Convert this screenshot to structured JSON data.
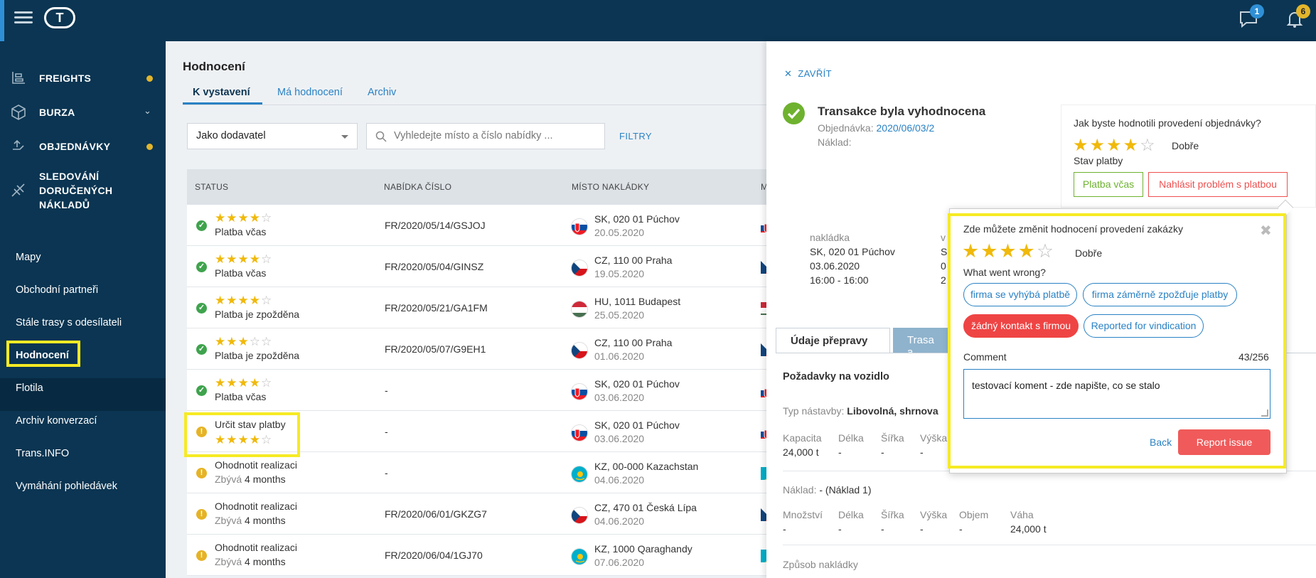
{
  "topbar": {
    "logo": "T",
    "chat_badge": "1",
    "bell_badge": "6"
  },
  "sidebar": {
    "main": [
      {
        "label": "FREIGHTS",
        "icon": "freights-icon",
        "dot": true
      },
      {
        "label": "BURZA",
        "icon": "exchange-icon",
        "chevron": true
      },
      {
        "label": "OBJEDNÁVKY",
        "icon": "orders-icon",
        "dot": true
      },
      {
        "label_lines": [
          "SLEDOVÁNÍ",
          "DORUČENÝCH",
          "NÁKLADŮ"
        ],
        "icon": "tracking-icon"
      }
    ],
    "links": [
      "Mapy",
      "Obchodní partneři",
      "Stále trasy s odesílateli",
      "Hodnocení",
      "Flotila",
      "Archiv konverzací",
      "Trans.INFO",
      "Vymáhání pohledávek"
    ]
  },
  "page": {
    "title": "Hodnocení",
    "tabs": [
      "K vystavení",
      "Má hodnocení",
      "Archiv"
    ],
    "filter_select": "Jako dodavatel",
    "search_placeholder": "Vyhledejte místo a číslo nabídky ...",
    "filters_label": "FILTRY"
  },
  "table": {
    "columns": [
      "STATUS",
      "NABÍDKA ČÍSLO",
      "MÍSTO NAKLÁDKY",
      "M"
    ],
    "rows": [
      {
        "status": "ok",
        "stars": 4,
        "text": "Platba včas",
        "offer": "FR/2020/05/14/GSJOJ",
        "flag": "sk",
        "place": "SK, 020 01 Púchov",
        "date": "20.05.2020"
      },
      {
        "status": "ok",
        "stars": 4,
        "text": "Platba včas",
        "offer": "FR/2020/05/04/GINSZ",
        "flag": "cz",
        "place": "CZ, 110 00 Praha",
        "date": "19.05.2020"
      },
      {
        "status": "ok",
        "stars": 4,
        "text": "Platba je zpožděna",
        "offer": "FR/2020/05/21/GA1FM",
        "flag": "hu",
        "place": "HU, 1011 Budapest",
        "date": "25.05.2020"
      },
      {
        "status": "ok",
        "stars": 3,
        "text": "Platba je zpožděna",
        "offer": "FR/2020/05/07/G9EH1",
        "flag": "cz",
        "place": "CZ, 110 00 Praha",
        "date": "01.06.2020"
      },
      {
        "status": "ok",
        "stars": 4,
        "text": "Platba včas",
        "offer": "-",
        "flag": "sk",
        "place": "SK, 020 01 Púchov",
        "date": "03.06.2020"
      },
      {
        "status": "warn",
        "stars": 4,
        "text": "Určit stav platby",
        "offer": "-",
        "flag": "sk",
        "place": "SK, 020 01 Púchov",
        "date": "03.06.2020"
      },
      {
        "status": "warn",
        "text": "Ohodnotit realizaci",
        "remain_label": "Zbývá",
        "remain": "4 months",
        "offer": "-",
        "flag": "kz",
        "place": "KZ, 00-000 Kazachstan",
        "date": "04.06.2020"
      },
      {
        "status": "warn",
        "text": "Ohodnotit realizaci",
        "remain_label": "Zbývá",
        "remain": "4 months",
        "offer": "FR/2020/06/01/GKZG7",
        "flag": "cz",
        "place": "CZ, 470 01 Česká Lípa",
        "date": "04.06.2020"
      },
      {
        "status": "warn",
        "text": "Ohodnotit realizaci",
        "remain_label": "Zbývá",
        "remain": "4 months",
        "offer": "FR/2020/06/04/1GJ70",
        "flag": "kz",
        "place": "KZ, 1000 Qaraghandy",
        "date": "07.06.2020"
      }
    ]
  },
  "panel": {
    "close": "ZAVŘÍT",
    "title": "Transakce byla vyhodnocena",
    "order_label": "Objednávka:",
    "order_value": "2020/06/03/2",
    "load_label": "Náklad:",
    "loading_label": "nakládka",
    "loading_place": "SK, 020 01 Púchov",
    "loading_date": "03.06.2020",
    "loading_time": "16:00 - 16:00",
    "unloading_frag": "v",
    "unloading_frag2": "S",
    "unloading_frag3": "0",
    "unloading_frag4": "2",
    "rating_question": "Jak byste hodnotili provedení objednávky?",
    "rating_stars": 4,
    "rating_word": "Dobře",
    "pay_label": "Stav platby",
    "pay_ok": "Platba včas",
    "pay_problem": "Nahlásit problém s platbou",
    "tabs": [
      "Údaje přepravy",
      "Trasa a"
    ],
    "vehicle_section": "Požadavky na vozidlo",
    "body_label": "Typ nástavby:",
    "body_value": "Libovolná, shrnova",
    "vehicle_cols": [
      "Kapacita",
      "Délka",
      "Šířka",
      "Výška"
    ],
    "vehicle_vals": [
      "24,000 t",
      "-",
      "-",
      "-"
    ],
    "cargo_label": "Náklad:",
    "cargo_value": "- (Náklad 1)",
    "cargo_cols": [
      "Množství",
      "Délka",
      "Šířka",
      "Výška",
      "Objem",
      "Váha"
    ],
    "cargo_vals": [
      "-",
      "-",
      "-",
      "-",
      "-",
      "24,000 t"
    ],
    "loading_method": "Způsob nakládky"
  },
  "popup": {
    "title": "Zde můžete změnit hodnocení provedení zakázky",
    "stars": 4,
    "rating_word": "Dobře",
    "question": "What went wrong?",
    "chips": [
      "firma se vyhýbá platbě",
      "firma záměrně zpožďuje platby",
      "žádný kontakt s firmou",
      "Reported for vindication"
    ],
    "selected_chip": 2,
    "comment_label": "Comment",
    "comment_count": "43/256",
    "comment_value": "testovací koment - zde napište, co se stalo",
    "back": "Back",
    "report": "Report issue"
  },
  "colors": {
    "navy": "#0b3552",
    "link": "#2a82c4",
    "star": "#f0b90b",
    "ok": "#3fa34d",
    "warn": "#e6b325",
    "danger": "#ef4444",
    "highlight": "#f6ea24"
  }
}
